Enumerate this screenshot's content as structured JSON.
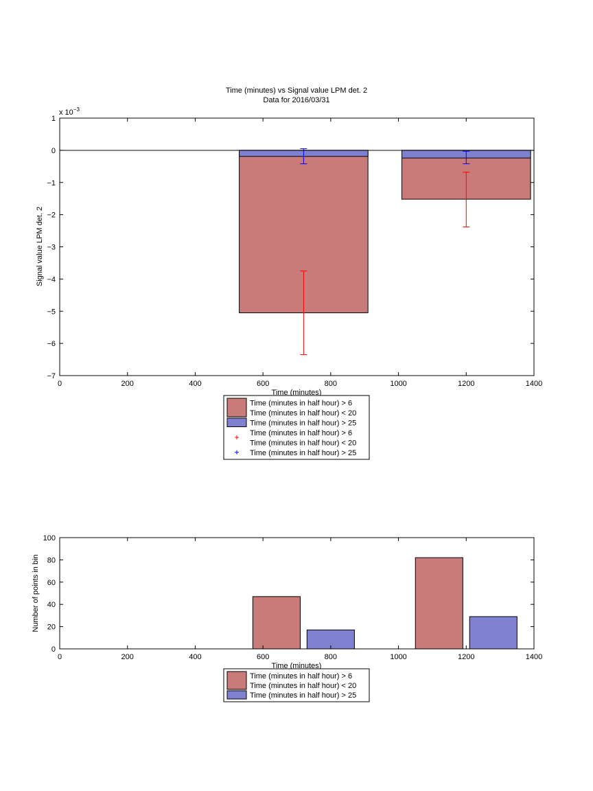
{
  "chart_data": [
    {
      "type": "bar",
      "title": "Time (minutes) vs Signal value LPM det. 2",
      "subtitle": "Data for 2016/03/31",
      "xlabel": "Time (minutes)",
      "ylabel": "Signal value LPM det. 2",
      "scale_label": "x 10",
      "scale_exponent": "−3",
      "xlim": [
        0,
        1400
      ],
      "ylim": [
        -7,
        1
      ],
      "x_ticks": [
        "0",
        "200",
        "400",
        "600",
        "800",
        "1000",
        "1200",
        "1400"
      ],
      "y_ticks": [
        "1",
        "0",
        "−1",
        "−2",
        "−3",
        "−4",
        "−5",
        "−6",
        "−7"
      ],
      "grid": false,
      "bars": [
        {
          "series": 0,
          "x0": 530,
          "x1": 910,
          "value": -5.05
        },
        {
          "series": 0,
          "x0": 1010,
          "x1": 1390,
          "value": -1.52
        },
        {
          "series": 1,
          "x0": 530,
          "x1": 910,
          "value": -0.19
        },
        {
          "series": 1,
          "x0": 1010,
          "x1": 1390,
          "value": -0.24
        }
      ],
      "errorbars": [
        {
          "series": 0,
          "x": 720,
          "low": -6.35,
          "high": -3.75
        },
        {
          "series": 0,
          "x": 1200,
          "low": -2.38,
          "high": -0.68
        },
        {
          "series": 1,
          "x": 720,
          "low": -0.42,
          "high": 0.05
        },
        {
          "series": 1,
          "x": 1200,
          "low": -0.42,
          "high": -0.03
        }
      ],
      "legend": [
        {
          "kind": "patch",
          "color": "#c97b7a",
          "lines": [
            "Time (minutes in half hour) > 6",
            "Time (minutes in half hour) < 20"
          ]
        },
        {
          "kind": "patch",
          "color": "#8080d0",
          "lines": [
            "Time (minutes in half hour) > 25"
          ]
        },
        {
          "kind": "marker",
          "color": "#ff0000",
          "lines": [
            "Time (minutes in half hour) > 6",
            "Time (minutes in half hour) < 20"
          ]
        },
        {
          "kind": "marker",
          "color": "#0000ff",
          "lines": [
            "Time (minutes in half hour) > 25"
          ]
        }
      ],
      "legend_position": "below"
    },
    {
      "type": "bar",
      "xlabel": "Time (minutes)",
      "ylabel": "Number of points in bin",
      "xlim": [
        0,
        1400
      ],
      "ylim": [
        0,
        100
      ],
      "x_ticks": [
        "0",
        "200",
        "400",
        "600",
        "800",
        "1000",
        "1200",
        "1400"
      ],
      "y_ticks": [
        "0",
        "20",
        "40",
        "60",
        "80",
        "100"
      ],
      "grid": false,
      "bars": [
        {
          "series": 0,
          "x0": 570,
          "x1": 710,
          "value": 47
        },
        {
          "series": 1,
          "x0": 730,
          "x1": 870,
          "value": 17
        },
        {
          "series": 0,
          "x0": 1050,
          "x1": 1190,
          "value": 82
        },
        {
          "series": 1,
          "x0": 1210,
          "x1": 1350,
          "value": 29
        }
      ],
      "legend": [
        {
          "kind": "patch",
          "color": "#c97b7a",
          "lines": [
            "Time (minutes in half hour) > 6",
            "Time (minutes in half hour) < 20"
          ]
        },
        {
          "kind": "patch",
          "color": "#8080d0",
          "lines": [
            "Time (minutes in half hour) > 25"
          ]
        }
      ],
      "legend_position": "below"
    }
  ],
  "colors": {
    "series0": "#c97b7a",
    "series1": "#8080d0",
    "err0": "#ff0000",
    "err1": "#0000ff"
  }
}
